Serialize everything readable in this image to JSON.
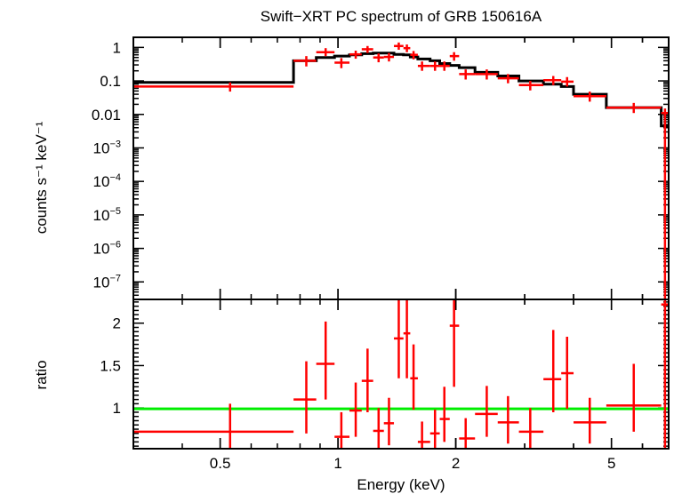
{
  "chart_data": [
    {
      "type": "scatter",
      "panel": "spectrum",
      "title": "Swift−XRT PC spectrum of GRB 150616A",
      "ylabel": "counts s⁻¹ keV⁻¹",
      "xscale": "log",
      "yscale": "log",
      "xlim": [
        0.3,
        7.0
      ],
      "ylim": [
        3e-08,
        2.0
      ],
      "y_ticks": [
        {
          "value": 1,
          "label": "1"
        },
        {
          "value": 0.1,
          "label": "0.1"
        },
        {
          "value": 0.01,
          "label": "0.01"
        },
        {
          "value": 0.001,
          "label": "10",
          "exp": "−3"
        },
        {
          "value": 0.0001,
          "label": "10",
          "exp": "−4"
        },
        {
          "value": 1e-05,
          "label": "10",
          "exp": "−5"
        },
        {
          "value": 1e-06,
          "label": "10",
          "exp": "−6"
        },
        {
          "value": 1e-07,
          "label": "10",
          "exp": "−7"
        }
      ],
      "series": [
        {
          "kind": "data",
          "color": "#ff0000",
          "points": [
            {
              "x": 0.53,
              "xlo": 0.3,
              "xhi": 0.77,
              "y": 0.068,
              "ylo": 0.048,
              "yhi": 0.09
            },
            {
              "x": 0.83,
              "xlo": 0.77,
              "xhi": 0.88,
              "y": 0.4,
              "ylo": 0.27,
              "yhi": 0.55
            },
            {
              "x": 0.93,
              "xlo": 0.88,
              "xhi": 0.98,
              "y": 0.72,
              "ylo": 0.55,
              "yhi": 0.95
            },
            {
              "x": 1.02,
              "xlo": 0.98,
              "xhi": 1.07,
              "y": 0.35,
              "ylo": 0.24,
              "yhi": 0.48
            },
            {
              "x": 1.11,
              "xlo": 1.07,
              "xhi": 1.15,
              "y": 0.62,
              "ylo": 0.46,
              "yhi": 0.8
            },
            {
              "x": 1.19,
              "xlo": 1.15,
              "xhi": 1.23,
              "y": 0.88,
              "ylo": 0.68,
              "yhi": 1.1
            },
            {
              "x": 1.27,
              "xlo": 1.23,
              "xhi": 1.31,
              "y": 0.5,
              "ylo": 0.36,
              "yhi": 0.66
            },
            {
              "x": 1.35,
              "xlo": 1.31,
              "xhi": 1.39,
              "y": 0.52,
              "ylo": 0.38,
              "yhi": 0.68
            },
            {
              "x": 1.43,
              "xlo": 1.39,
              "xhi": 1.47,
              "y": 1.1,
              "ylo": 0.85,
              "yhi": 1.4
            },
            {
              "x": 1.5,
              "xlo": 1.47,
              "xhi": 1.53,
              "y": 0.95,
              "ylo": 0.72,
              "yhi": 1.22
            },
            {
              "x": 1.56,
              "xlo": 1.53,
              "xhi": 1.6,
              "y": 0.6,
              "ylo": 0.44,
              "yhi": 0.78
            },
            {
              "x": 1.64,
              "xlo": 1.6,
              "xhi": 1.72,
              "y": 0.28,
              "ylo": 0.2,
              "yhi": 0.38
            },
            {
              "x": 1.77,
              "xlo": 1.72,
              "xhi": 1.82,
              "y": 0.28,
              "ylo": 0.2,
              "yhi": 0.38
            },
            {
              "x": 1.87,
              "xlo": 1.82,
              "xhi": 1.93,
              "y": 0.28,
              "ylo": 0.2,
              "yhi": 0.38
            },
            {
              "x": 1.98,
              "xlo": 1.93,
              "xhi": 2.04,
              "y": 0.55,
              "ylo": 0.4,
              "yhi": 0.72
            },
            {
              "x": 2.12,
              "xlo": 2.04,
              "xhi": 2.24,
              "y": 0.16,
              "ylo": 0.11,
              "yhi": 0.22
            },
            {
              "x": 2.4,
              "xlo": 2.24,
              "xhi": 2.56,
              "y": 0.16,
              "ylo": 0.11,
              "yhi": 0.22
            },
            {
              "x": 2.72,
              "xlo": 2.56,
              "xhi": 2.9,
              "y": 0.12,
              "ylo": 0.085,
              "yhi": 0.16
            },
            {
              "x": 3.1,
              "xlo": 2.9,
              "xhi": 3.35,
              "y": 0.075,
              "ylo": 0.052,
              "yhi": 0.1
            },
            {
              "x": 3.55,
              "xlo": 3.35,
              "xhi": 3.72,
              "y": 0.105,
              "ylo": 0.075,
              "yhi": 0.14
            },
            {
              "x": 3.85,
              "xlo": 3.72,
              "xhi": 4.0,
              "y": 0.095,
              "ylo": 0.068,
              "yhi": 0.13
            },
            {
              "x": 4.4,
              "xlo": 4.0,
              "xhi": 4.85,
              "y": 0.035,
              "ylo": 0.024,
              "yhi": 0.048
            },
            {
              "x": 5.7,
              "xlo": 4.85,
              "xhi": 6.7,
              "y": 0.016,
              "ylo": 0.011,
              "yhi": 0.022
            },
            {
              "x": 6.85,
              "xlo": 6.7,
              "xhi": 7.0,
              "y": 0.011,
              "ylo": 3e-08,
              "yhi": 0.015
            }
          ]
        },
        {
          "kind": "model",
          "color": "#000000",
          "steps": [
            {
              "x0": 0.3,
              "x1": 0.77,
              "y": 0.09
            },
            {
              "x0": 0.77,
              "x1": 0.88,
              "y": 0.4
            },
            {
              "x0": 0.88,
              "x1": 0.98,
              "y": 0.5
            },
            {
              "x0": 0.98,
              "x1": 1.07,
              "y": 0.55
            },
            {
              "x0": 1.07,
              "x1": 1.15,
              "y": 0.6
            },
            {
              "x0": 1.15,
              "x1": 1.23,
              "y": 0.65
            },
            {
              "x0": 1.23,
              "x1": 1.31,
              "y": 0.68
            },
            {
              "x0": 1.31,
              "x1": 1.39,
              "y": 0.68
            },
            {
              "x0": 1.39,
              "x1": 1.47,
              "y": 0.62
            },
            {
              "x0": 1.47,
              "x1": 1.53,
              "y": 0.6
            },
            {
              "x0": 1.53,
              "x1": 1.6,
              "y": 0.52
            },
            {
              "x0": 1.6,
              "x1": 1.72,
              "y": 0.45
            },
            {
              "x0": 1.72,
              "x1": 1.82,
              "y": 0.4
            },
            {
              "x0": 1.82,
              "x1": 1.93,
              "y": 0.33
            },
            {
              "x0": 1.93,
              "x1": 2.04,
              "y": 0.29
            },
            {
              "x0": 2.04,
              "x1": 2.24,
              "y": 0.25
            },
            {
              "x0": 2.24,
              "x1": 2.56,
              "y": 0.18
            },
            {
              "x0": 2.56,
              "x1": 2.9,
              "y": 0.14
            },
            {
              "x0": 2.9,
              "x1": 3.35,
              "y": 0.1
            },
            {
              "x0": 3.35,
              "x1": 3.72,
              "y": 0.08
            },
            {
              "x0": 3.72,
              "x1": 4.0,
              "y": 0.068
            },
            {
              "x0": 4.0,
              "x1": 4.85,
              "y": 0.04
            },
            {
              "x0": 4.85,
              "x1": 6.7,
              "y": 0.016
            },
            {
              "x0": 6.7,
              "x1": 7.0,
              "y": 0.0045
            }
          ]
        }
      ]
    },
    {
      "type": "scatter",
      "panel": "ratio",
      "xlabel": "Energy (keV)",
      "ylabel": "ratio",
      "xscale": "log",
      "xlim": [
        0.3,
        7.0
      ],
      "ylim": [
        0.52,
        2.28
      ],
      "x_ticks": [
        {
          "value": 0.5,
          "label": "0.5"
        },
        {
          "value": 1,
          "label": "1"
        },
        {
          "value": 2,
          "label": "2"
        },
        {
          "value": 5,
          "label": "5"
        }
      ],
      "y_ticks": [
        {
          "value": 1,
          "label": "1"
        },
        {
          "value": 1.5,
          "label": "1.5"
        },
        {
          "value": 2,
          "label": "2"
        }
      ],
      "reference_line": {
        "y": 0.99,
        "color": "#00ee00"
      },
      "series": [
        {
          "kind": "data",
          "color": "#ff0000",
          "points": [
            {
              "x": 0.53,
              "xlo": 0.3,
              "xhi": 0.77,
              "y": 0.72,
              "ylo": 0.52,
              "yhi": 1.05
            },
            {
              "x": 0.83,
              "xlo": 0.77,
              "xhi": 0.88,
              "y": 1.1,
              "ylo": 0.7,
              "yhi": 1.55
            },
            {
              "x": 0.93,
              "xlo": 0.88,
              "xhi": 0.98,
              "y": 1.52,
              "ylo": 1.1,
              "yhi": 2.02
            },
            {
              "x": 1.02,
              "xlo": 0.98,
              "xhi": 1.07,
              "y": 0.66,
              "ylo": 0.52,
              "yhi": 0.95
            },
            {
              "x": 1.11,
              "xlo": 1.07,
              "xhi": 1.15,
              "y": 0.97,
              "ylo": 0.66,
              "yhi": 1.3
            },
            {
              "x": 1.19,
              "xlo": 1.15,
              "xhi": 1.23,
              "y": 1.32,
              "ylo": 0.95,
              "yhi": 1.7
            },
            {
              "x": 1.27,
              "xlo": 1.23,
              "xhi": 1.31,
              "y": 0.73,
              "ylo": 0.52,
              "yhi": 1.0
            },
            {
              "x": 1.35,
              "xlo": 1.31,
              "xhi": 1.39,
              "y": 0.82,
              "ylo": 0.56,
              "yhi": 1.12
            },
            {
              "x": 1.43,
              "xlo": 1.39,
              "xhi": 1.47,
              "y": 1.82,
              "ylo": 1.35,
              "yhi": 2.28
            },
            {
              "x": 1.5,
              "xlo": 1.47,
              "xhi": 1.53,
              "y": 1.88,
              "ylo": 1.35,
              "yhi": 2.28
            },
            {
              "x": 1.56,
              "xlo": 1.53,
              "xhi": 1.6,
              "y": 1.35,
              "ylo": 0.98,
              "yhi": 1.75
            },
            {
              "x": 1.64,
              "xlo": 1.6,
              "xhi": 1.72,
              "y": 0.6,
              "ylo": 0.52,
              "yhi": 0.84
            },
            {
              "x": 1.77,
              "xlo": 1.72,
              "xhi": 1.82,
              "y": 0.7,
              "ylo": 0.52,
              "yhi": 0.98
            },
            {
              "x": 1.87,
              "xlo": 1.82,
              "xhi": 1.93,
              "y": 0.87,
              "ylo": 0.6,
              "yhi": 1.25
            },
            {
              "x": 1.98,
              "xlo": 1.93,
              "xhi": 2.04,
              "y": 1.97,
              "ylo": 1.25,
              "yhi": 2.28
            },
            {
              "x": 2.12,
              "xlo": 2.04,
              "xhi": 2.24,
              "y": 0.64,
              "ylo": 0.52,
              "yhi": 0.88
            },
            {
              "x": 2.4,
              "xlo": 2.24,
              "xhi": 2.56,
              "y": 0.93,
              "ylo": 0.66,
              "yhi": 1.26
            },
            {
              "x": 2.72,
              "xlo": 2.56,
              "xhi": 2.9,
              "y": 0.83,
              "ylo": 0.58,
              "yhi": 1.14
            },
            {
              "x": 3.1,
              "xlo": 2.9,
              "xhi": 3.35,
              "y": 0.72,
              "ylo": 0.52,
              "yhi": 1.0
            },
            {
              "x": 3.55,
              "xlo": 3.35,
              "xhi": 3.72,
              "y": 1.34,
              "ylo": 0.95,
              "yhi": 1.92
            },
            {
              "x": 3.85,
              "xlo": 3.72,
              "xhi": 4.0,
              "y": 1.41,
              "ylo": 0.99,
              "yhi": 1.84
            },
            {
              "x": 4.4,
              "xlo": 4.0,
              "xhi": 4.85,
              "y": 0.83,
              "ylo": 0.58,
              "yhi": 1.12
            },
            {
              "x": 5.7,
              "xlo": 4.85,
              "xhi": 6.7,
              "y": 1.03,
              "ylo": 0.72,
              "yhi": 1.52
            },
            {
              "x": 6.85,
              "xlo": 6.7,
              "xhi": 7.0,
              "y": 2.22,
              "ylo": 0.52,
              "yhi": 2.28
            }
          ]
        }
      ]
    }
  ]
}
